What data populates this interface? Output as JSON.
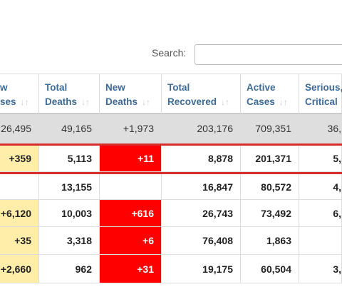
{
  "search_label": "Search:",
  "table": {
    "headers": [
      [
        "w",
        "ses"
      ],
      [
        "Total",
        "Deaths"
      ],
      [
        "New",
        "Deaths"
      ],
      [
        "Total",
        "Recovered"
      ],
      [
        "Active",
        "Cases"
      ],
      [
        "Serious,",
        "Critical"
      ]
    ],
    "rows": [
      [
        "26,495",
        "49,165",
        "+1,973",
        "203,176",
        "709,351",
        "36,"
      ],
      [
        "+359",
        "5,113",
        "+11",
        "8,878",
        "201,371",
        "5,"
      ],
      [
        "",
        "13,155",
        "",
        "16,847",
        "80,572",
        "4,"
      ],
      [
        "+6,120",
        "10,003",
        "+616",
        "26,743",
        "73,492",
        "6,"
      ],
      [
        "+35",
        "3,318",
        "+6",
        "76,408",
        "1,863",
        ""
      ],
      [
        "+2,660",
        "962",
        "+31",
        "19,175",
        "60,504",
        "3,"
      ]
    ]
  }
}
